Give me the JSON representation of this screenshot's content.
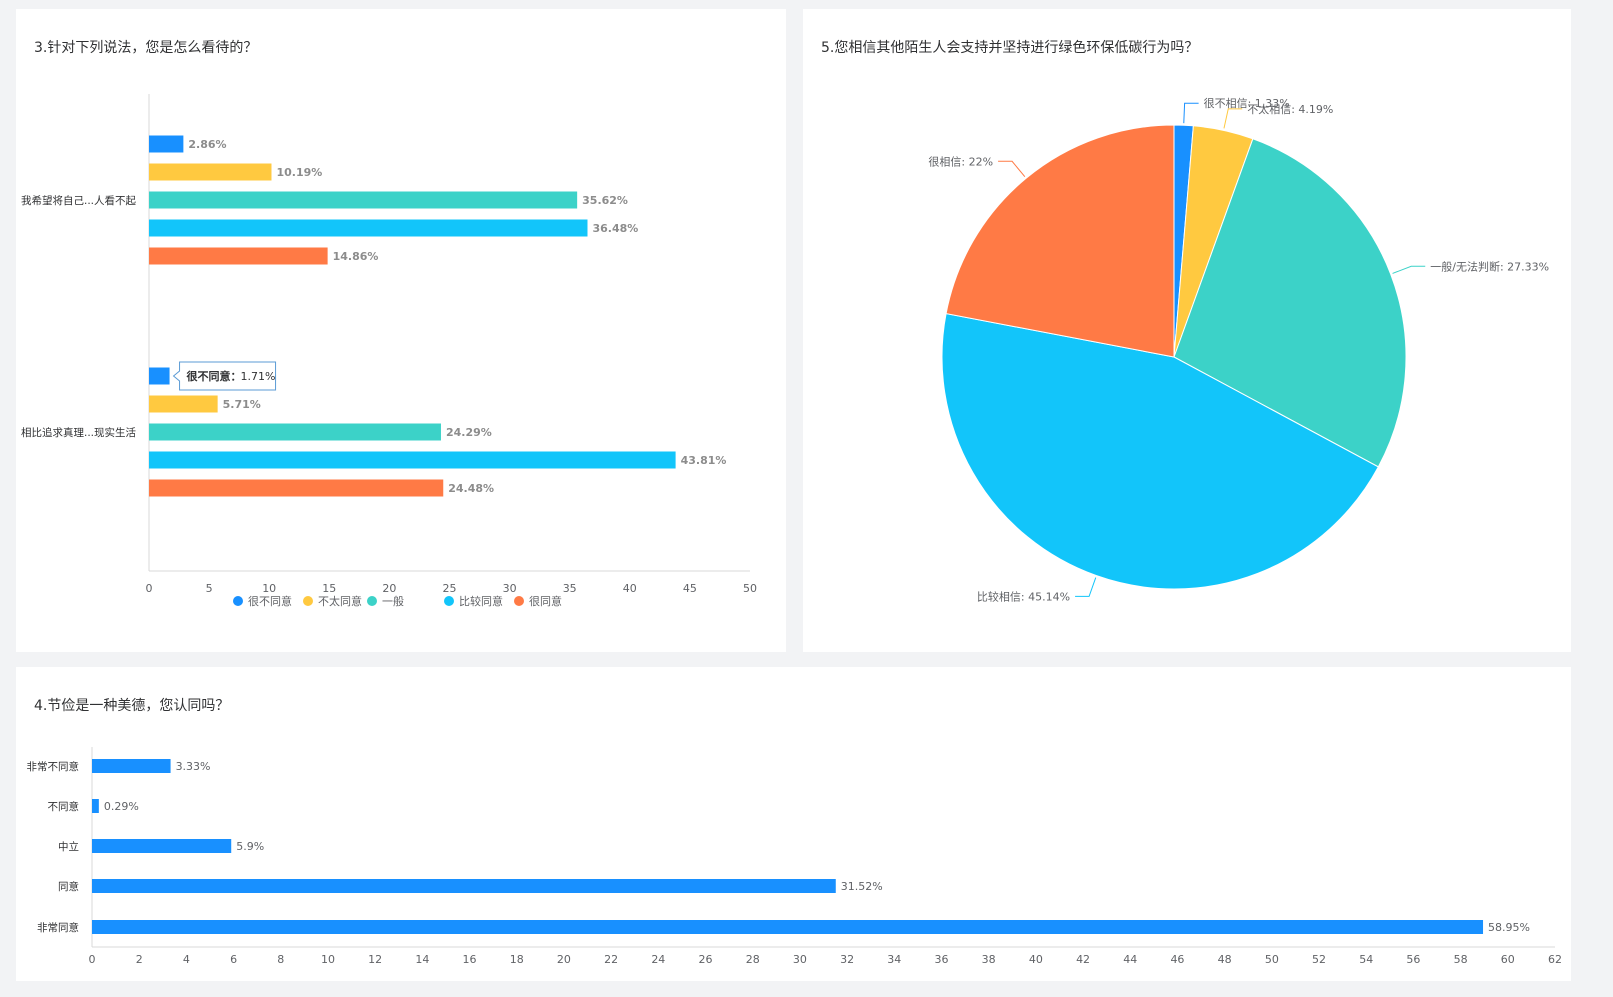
{
  "panels": {
    "q3": {
      "title": "3.针对下列说法，您是怎么看待的？"
    },
    "q5": {
      "title": "5.您相信其他陌生人会支持并坚持进行绿色环保低碳行为吗？"
    },
    "q4": {
      "title": "4.节俭是一种美德，您认同吗？"
    }
  },
  "colors": {
    "blue": "#1890ff",
    "yellow": "#ffc940",
    "teal": "#3cd2c8",
    "cyan": "#12c5fa",
    "orange": "#ff7a45"
  },
  "chart_data": [
    {
      "type": "bar",
      "orientation": "horizontal",
      "title": "3.针对下列说法，您是怎么看待的？",
      "categories": [
        "我希望将自己...人看不起",
        "相比追求真理...现实生活"
      ],
      "series": [
        {
          "name": "很不同意",
          "color": "#1890ff",
          "values": [
            2.86,
            1.71
          ],
          "labels": [
            "2.86%",
            "1.71%"
          ]
        },
        {
          "name": "不太同意",
          "color": "#ffc940",
          "values": [
            10.19,
            5.71
          ],
          "labels": [
            "10.19%",
            "5.71%"
          ]
        },
        {
          "name": "一般",
          "color": "#3cd2c8",
          "values": [
            35.62,
            24.29
          ],
          "labels": [
            "35.62%",
            "24.29%"
          ]
        },
        {
          "name": "比较同意",
          "color": "#12c5fa",
          "values": [
            36.48,
            43.81
          ],
          "labels": [
            "36.48%",
            "43.81%"
          ]
        },
        {
          "name": "很同意",
          "color": "#ff7a45",
          "values": [
            14.86,
            24.48
          ],
          "labels": [
            "14.86%",
            "24.48%"
          ]
        }
      ],
      "xlim": [
        0,
        50
      ],
      "xticks": [
        "0",
        "5",
        "10",
        "15",
        "20",
        "25",
        "30",
        "35",
        "40",
        "45",
        "50"
      ],
      "legend_position": "bottom",
      "tooltip": {
        "series": "很不同意",
        "category_index": 1,
        "label": "很不同意",
        "value": "1.71%"
      }
    },
    {
      "type": "pie",
      "title": "5.您相信其他陌生人会支持并坚持进行绿色环保低碳行为吗？",
      "slices": [
        {
          "name": "很不相信",
          "value": 1.33,
          "label": "很不相信: 1.33%",
          "color": "#1890ff"
        },
        {
          "name": "不太相信",
          "value": 4.19,
          "label": "不太相信: 4.19%",
          "color": "#ffc940"
        },
        {
          "name": "一般/无法判断",
          "value": 27.33,
          "label": "一般/无法判断: 27.33%",
          "color": "#3cd2c8"
        },
        {
          "name": "比较相信",
          "value": 45.14,
          "label": "比较相信: 45.14%",
          "color": "#12c5fa"
        },
        {
          "name": "很相信",
          "value": 22,
          "label": "很相信: 22%",
          "color": "#ff7a45"
        }
      ]
    },
    {
      "type": "bar",
      "orientation": "horizontal",
      "title": "4.节俭是一种美德，您认同吗？",
      "categories": [
        "非常不同意",
        "不同意",
        "中立",
        "同意",
        "非常同意"
      ],
      "values": [
        3.33,
        0.29,
        5.9,
        31.52,
        58.95
      ],
      "labels": [
        "3.33%",
        "0.29%",
        "5.9%",
        "31.52%",
        "58.95%"
      ],
      "color": "#1890ff",
      "xlim": [
        0,
        62
      ],
      "xticks": [
        "0",
        "2",
        "4",
        "6",
        "8",
        "10",
        "12",
        "14",
        "16",
        "18",
        "20",
        "22",
        "24",
        "26",
        "28",
        "30",
        "32",
        "34",
        "36",
        "38",
        "40",
        "42",
        "44",
        "46",
        "48",
        "50",
        "52",
        "54",
        "56",
        "58",
        "60",
        "62"
      ]
    }
  ]
}
